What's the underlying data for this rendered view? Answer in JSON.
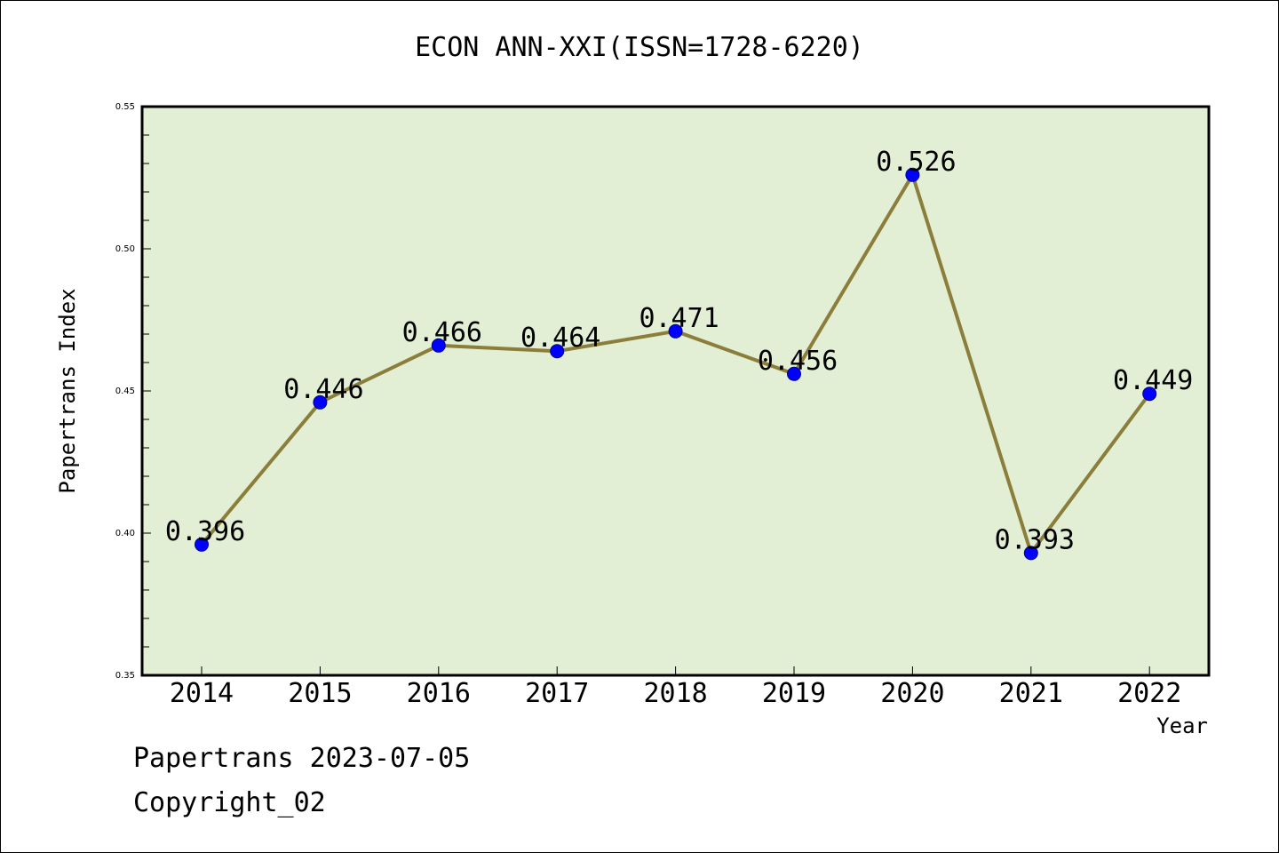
{
  "title": "ECON ANN-XXI(ISSN=1728-6220)",
  "footer": {
    "line1": "Papertrans 2023-07-05",
    "line2": "Copyright_02"
  },
  "colors": {
    "plot_background": "#e2efd4",
    "line": "#8b7d3a",
    "marker": "#0000ff",
    "marker_edge": "#00008b"
  },
  "chart_data": {
    "type": "line",
    "title": "ECON ANN-XXI(ISSN=1728-6220)",
    "xlabel": "Year",
    "ylabel": "Papertrans Index",
    "categories": [
      "2014",
      "2015",
      "2016",
      "2017",
      "2018",
      "2019",
      "2020",
      "2021",
      "2022"
    ],
    "values": [
      0.396,
      0.446,
      0.466,
      0.464,
      0.471,
      0.456,
      0.526,
      0.393,
      0.449
    ],
    "data_labels": [
      "0.396",
      "0.446",
      "0.466",
      "0.464",
      "0.471",
      "0.456",
      "0.526",
      "0.393",
      "0.449"
    ],
    "ylim": [
      0.35,
      0.55
    ],
    "yticks": [
      "0.35",
      "0.40",
      "0.45",
      "0.50",
      "0.55"
    ],
    "ytick_values": [
      0.35,
      0.4,
      0.45,
      0.5,
      0.55
    ],
    "grid": false,
    "legend": "none"
  }
}
